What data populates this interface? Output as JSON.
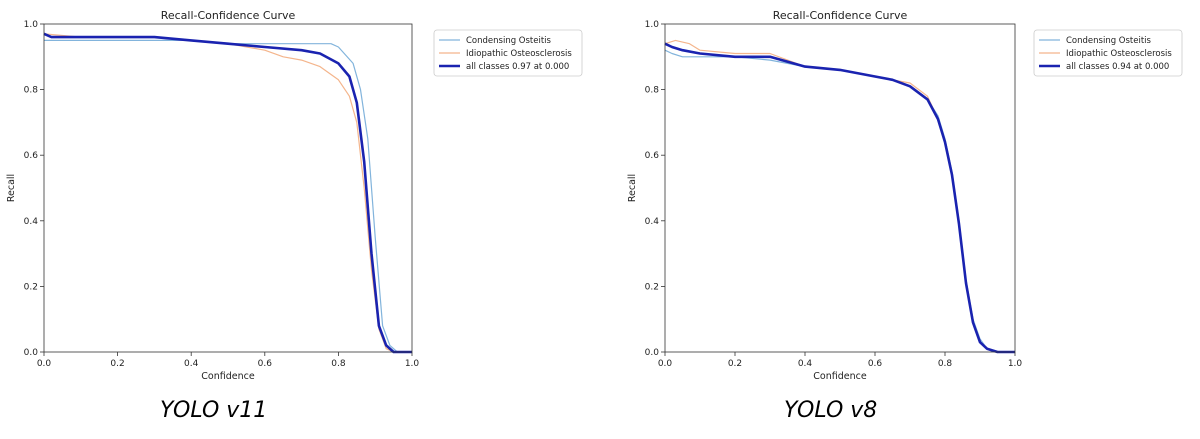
{
  "chart_data": [
    {
      "type": "line",
      "title": "Recall-Confidence Curve",
      "xlabel": "Confidence",
      "ylabel": "Recall",
      "xlim": [
        0,
        1
      ],
      "ylim": [
        0,
        1
      ],
      "xticks": [
        "0.0",
        "0.2",
        "0.4",
        "0.6",
        "0.8",
        "1.0"
      ],
      "yticks": [
        "0.0",
        "0.2",
        "0.4",
        "0.6",
        "0.8",
        "1.0"
      ],
      "grid": false,
      "legend_position": "outside-right",
      "caption": "YOLO v11",
      "series": [
        {
          "name": "Condensing Osteitis",
          "color": "#82b4dc",
          "x": [
            0.0,
            0.1,
            0.2,
            0.3,
            0.4,
            0.5,
            0.6,
            0.7,
            0.78,
            0.8,
            0.84,
            0.86,
            0.88,
            0.9,
            0.92,
            0.94,
            0.96,
            1.0
          ],
          "y": [
            0.95,
            0.95,
            0.95,
            0.95,
            0.95,
            0.94,
            0.94,
            0.94,
            0.94,
            0.93,
            0.88,
            0.8,
            0.65,
            0.35,
            0.08,
            0.02,
            0.0,
            0.0
          ]
        },
        {
          "name": "Idiopathic Osteosclerosis",
          "color": "#f4b58c",
          "x": [
            0.0,
            0.1,
            0.2,
            0.3,
            0.4,
            0.5,
            0.6,
            0.65,
            0.7,
            0.75,
            0.8,
            0.83,
            0.85,
            0.87,
            0.89,
            0.91,
            0.93,
            0.95,
            1.0
          ],
          "y": [
            0.97,
            0.96,
            0.96,
            0.96,
            0.95,
            0.94,
            0.92,
            0.9,
            0.89,
            0.87,
            0.83,
            0.78,
            0.7,
            0.5,
            0.25,
            0.07,
            0.01,
            0.0,
            0.0
          ]
        },
        {
          "name": "all classes 0.97 at 0.000",
          "color": "#1a23b0",
          "x": [
            0.0,
            0.02,
            0.1,
            0.2,
            0.3,
            0.4,
            0.5,
            0.6,
            0.7,
            0.75,
            0.8,
            0.83,
            0.85,
            0.87,
            0.89,
            0.91,
            0.93,
            0.95,
            1.0
          ],
          "y": [
            0.97,
            0.96,
            0.96,
            0.96,
            0.96,
            0.95,
            0.94,
            0.93,
            0.92,
            0.91,
            0.88,
            0.84,
            0.76,
            0.58,
            0.3,
            0.08,
            0.02,
            0.0,
            0.0
          ]
        }
      ]
    },
    {
      "type": "line",
      "title": "Recall-Confidence Curve",
      "xlabel": "Confidence",
      "ylabel": "Recall",
      "xlim": [
        0,
        1
      ],
      "ylim": [
        0,
        1
      ],
      "xticks": [
        "0.0",
        "0.2",
        "0.4",
        "0.6",
        "0.8",
        "1.0"
      ],
      "yticks": [
        "0.0",
        "0.2",
        "0.4",
        "0.6",
        "0.8",
        "1.0"
      ],
      "grid": false,
      "legend_position": "outside-right",
      "caption": "YOLO v8",
      "series": [
        {
          "name": "Condensing Osteitis",
          "color": "#82b4dc",
          "x": [
            0.0,
            0.02,
            0.05,
            0.1,
            0.2,
            0.3,
            0.4,
            0.5,
            0.6,
            0.65,
            0.7,
            0.75,
            0.78,
            0.8,
            0.82,
            0.84,
            0.86,
            0.88,
            0.9,
            0.92,
            0.95,
            1.0
          ],
          "y": [
            0.92,
            0.91,
            0.9,
            0.9,
            0.9,
            0.89,
            0.87,
            0.86,
            0.84,
            0.83,
            0.81,
            0.77,
            0.72,
            0.65,
            0.55,
            0.4,
            0.22,
            0.1,
            0.04,
            0.01,
            0.0,
            0.0
          ]
        },
        {
          "name": "Idiopathic Osteosclerosis",
          "color": "#f4b58c",
          "x": [
            0.0,
            0.03,
            0.07,
            0.1,
            0.2,
            0.3,
            0.4,
            0.5,
            0.6,
            0.65,
            0.7,
            0.75,
            0.78,
            0.8,
            0.82,
            0.84,
            0.86,
            0.88,
            0.9,
            0.92,
            0.95,
            1.0
          ],
          "y": [
            0.94,
            0.95,
            0.94,
            0.92,
            0.91,
            0.91,
            0.87,
            0.86,
            0.84,
            0.83,
            0.82,
            0.78,
            0.71,
            0.64,
            0.54,
            0.39,
            0.21,
            0.09,
            0.03,
            0.01,
            0.0,
            0.0
          ]
        },
        {
          "name": "all classes 0.94 at 0.000",
          "color": "#1a23b0",
          "x": [
            0.0,
            0.02,
            0.05,
            0.1,
            0.2,
            0.3,
            0.4,
            0.5,
            0.6,
            0.65,
            0.7,
            0.75,
            0.78,
            0.8,
            0.82,
            0.84,
            0.86,
            0.88,
            0.9,
            0.92,
            0.95,
            1.0
          ],
          "y": [
            0.94,
            0.93,
            0.92,
            0.91,
            0.9,
            0.9,
            0.87,
            0.86,
            0.84,
            0.83,
            0.81,
            0.77,
            0.71,
            0.64,
            0.54,
            0.39,
            0.21,
            0.09,
            0.03,
            0.01,
            0.0,
            0.0
          ]
        }
      ]
    }
  ]
}
